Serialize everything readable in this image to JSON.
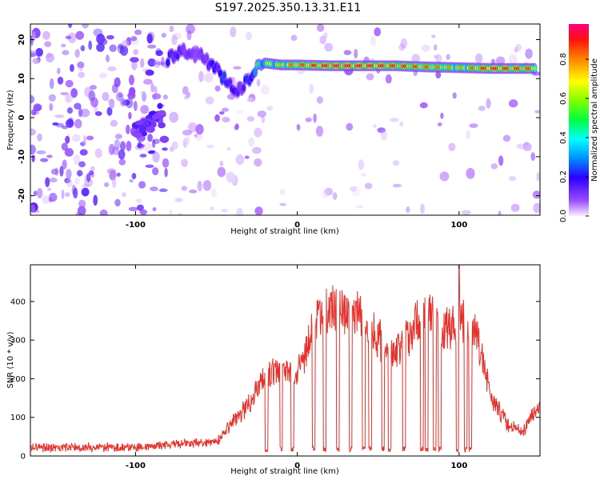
{
  "figure_title": "S197.2025.350.13.31.E11",
  "colors": {
    "snr_line": "#e8302a",
    "spectrogram_track": "#ffcc00",
    "scatter_speckle": "#7a22ee"
  },
  "chart_data": [
    {
      "type": "heatmap",
      "name": "spectrogram",
      "xlabel": "Height of straight line (km)",
      "ylabel": "Frequency (Hz)",
      "xlim": [
        -165,
        150
      ],
      "ylim": [
        -25,
        24
      ],
      "x_ticks": [
        "-100",
        "0",
        "100"
      ],
      "y_ticks": [
        "-20",
        "-10",
        "0",
        "10",
        "20"
      ],
      "colorbar": {
        "label": "Normalized spectral amplitude",
        "range": [
          0.0,
          0.98
        ],
        "ticks": [
          "0.0",
          "0.2",
          "0.4",
          "0.6",
          "0.8"
        ]
      },
      "tonal_track": {
        "x": [
          -80,
          -70,
          -60,
          -52,
          -45,
          -40,
          -35,
          -30,
          -25,
          -20,
          -10,
          0,
          20,
          40,
          60,
          80,
          100,
          120,
          148
        ],
        "freq": [
          15,
          17,
          16,
          13,
          10,
          8,
          7,
          10,
          13,
          14,
          13.5,
          13.5,
          13.3,
          13.3,
          13.3,
          13.0,
          12.8,
          12.6,
          12.6
        ],
        "amplitude": [
          0.3,
          0.2,
          0.15,
          0.3,
          0.35,
          0.3,
          0.2,
          0.35,
          0.5,
          0.6,
          0.7,
          0.8,
          0.9,
          0.9,
          0.85,
          0.8,
          0.7,
          0.9,
          0.8
        ]
      },
      "low_freq_feature": {
        "x": [
          -100,
          -92,
          -85,
          -82
        ],
        "freq": [
          -3,
          -2,
          2,
          -5
        ],
        "amplitude": [
          0.15,
          0.15,
          0.15,
          0.1
        ]
      }
    },
    {
      "type": "line",
      "name": "snr",
      "xlabel": "Height of straight line (km)",
      "ylabel": "SNR (10 * v/v)",
      "xlim": [
        -165,
        150
      ],
      "ylim": [
        0,
        495
      ],
      "x_ticks": [
        "-100",
        "0",
        "100"
      ],
      "y_ticks": [
        "0",
        "100",
        "200",
        "300",
        "400"
      ],
      "envelope": {
        "x": [
          -165,
          -100,
          -50,
          -40,
          -30,
          -20,
          -10,
          0,
          10,
          20,
          30,
          40,
          50,
          60,
          70,
          80,
          90,
          100,
          110,
          120,
          130,
          140,
          145,
          150
        ],
        "y": [
          25,
          25,
          40,
          100,
          150,
          230,
          250,
          230,
          370,
          420,
          420,
          400,
          340,
          300,
          360,
          420,
          360,
          390,
          360,
          170,
          90,
          70,
          120,
          140
        ]
      },
      "dropouts_x": [
        -19,
        -10,
        -3,
        10,
        17,
        25,
        33,
        41,
        45,
        53,
        57,
        66,
        77,
        80,
        85,
        88,
        99,
        104,
        107
      ],
      "peak_value": 495,
      "peak_x": 100
    }
  ]
}
